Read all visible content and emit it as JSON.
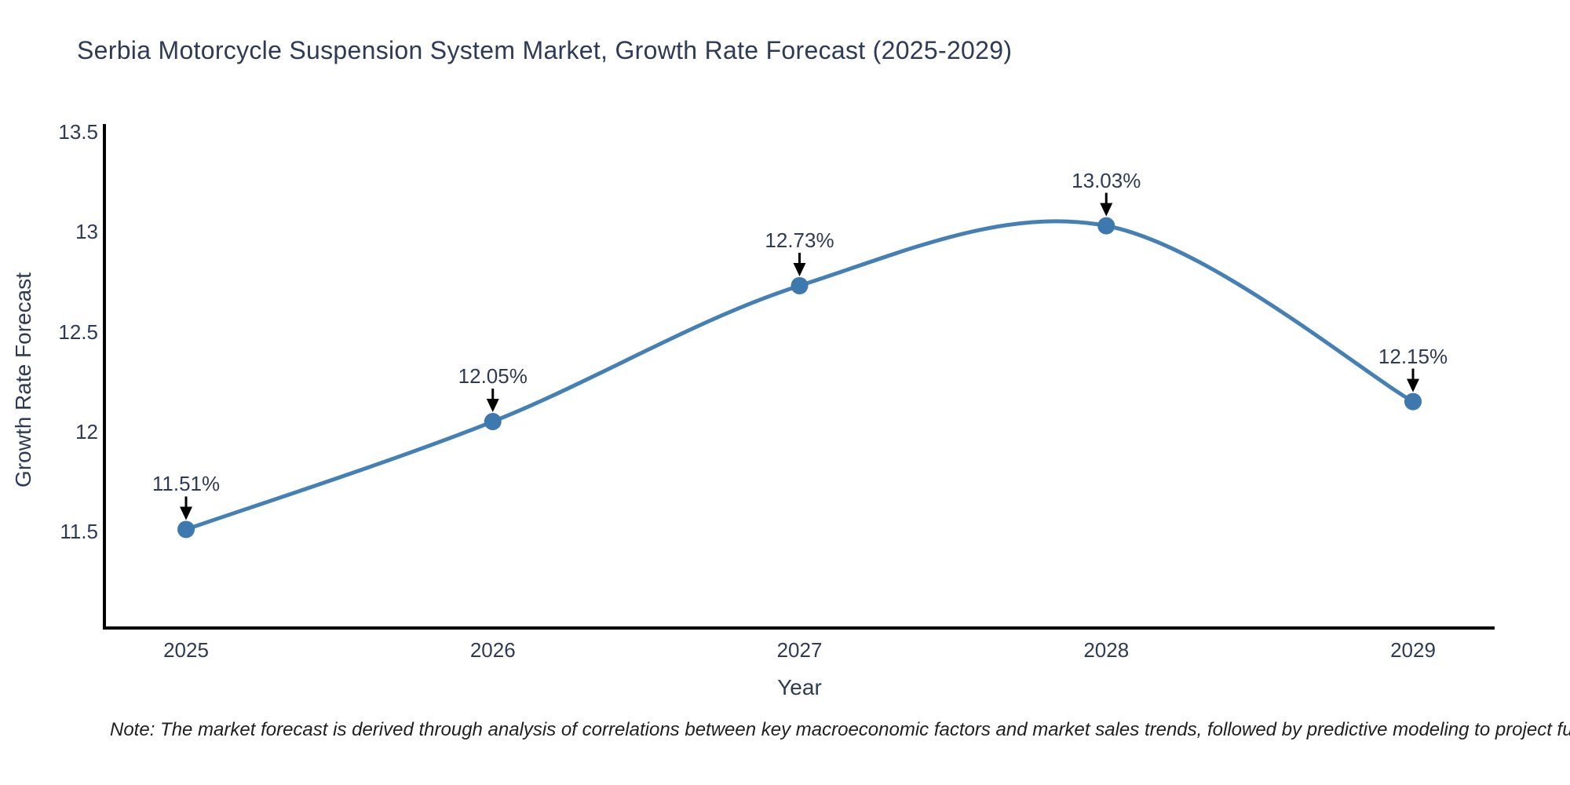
{
  "title": "Serbia Motorcycle Suspension System Market, Growth Rate Forecast (2025-2029)",
  "note": "Note: The market forecast is derived through analysis of correlations between key macroeconomic factors and market sales trends, followed by predictive modeling to project future sales.",
  "chart_data": {
    "type": "line",
    "title": "Serbia Motorcycle Suspension System Market, Growth Rate Forecast (2025-2029)",
    "x": [
      2025,
      2026,
      2027,
      2028,
      2029
    ],
    "x_tick_labels": [
      "2025",
      "2026",
      "2027",
      "2028",
      "2029"
    ],
    "series": [
      {
        "name": "Growth Rate Forecast",
        "values": [
          11.51,
          12.05,
          12.73,
          13.03,
          12.15
        ],
        "point_labels": [
          "11.51%",
          "12.05%",
          "12.73%",
          "13.03%",
          "12.15%"
        ]
      }
    ],
    "xlabel": "Year",
    "ylabel": "Growth Rate Forecast",
    "y_ticks": [
      13.5,
      13.0,
      12.5,
      12.0,
      11.5
    ],
    "y_tick_labels": [
      "13.5",
      "13",
      "12.5",
      "12",
      "11.5"
    ],
    "ylim": [
      11.02,
      13.54
    ],
    "grid": false,
    "legend_position": "none",
    "smooth": true,
    "colors": {
      "line": "#4580b4",
      "marker": "#3d78af",
      "arrow": "#000000",
      "spine": "#000000",
      "text": "#2e3b55",
      "note_text": "#1f1f1f",
      "background": "#ffffff"
    }
  }
}
